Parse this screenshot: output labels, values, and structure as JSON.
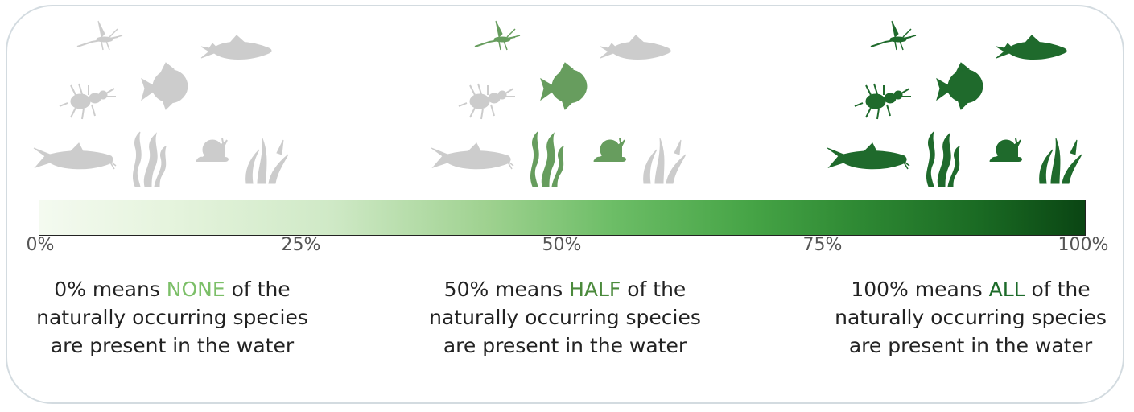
{
  "colors": {
    "none_accent": "#7cbf68",
    "half_accent": "#4b8a3c",
    "all_accent": "#1d6b2a",
    "inactive_icon": "#cccccc",
    "half_icon": "#679d5e",
    "all_icon": "#1f6a2c",
    "frame_border": "#d3dbe0"
  },
  "scale": {
    "ticks": [
      "0%",
      "25%",
      "50%",
      "75%",
      "100%"
    ],
    "gradient": [
      "#f4faf0",
      "#0a4513"
    ]
  },
  "descriptions": [
    {
      "prefix": "0% means ",
      "keyword": "NONE",
      "suffix": " of the naturally occurring species are present in the water"
    },
    {
      "prefix": "50% means ",
      "keyword": "HALF",
      "suffix": " of the naturally occurring species are present in the water"
    },
    {
      "prefix": "100% means ",
      "keyword": "ALL",
      "suffix": " of the naturally occurring species are present in the water"
    }
  ],
  "groups": [
    {
      "level_percent": 0,
      "species": [
        "mayfly-icon",
        "fish-icon",
        "insect-icon",
        "angelfish-icon",
        "catfish-icon",
        "plant-icon",
        "snail-icon",
        "grass-icon"
      ],
      "present": []
    },
    {
      "level_percent": 50,
      "species": [
        "mayfly-icon",
        "fish-icon",
        "insect-icon",
        "angelfish-icon",
        "catfish-icon",
        "plant-icon",
        "snail-icon",
        "grass-icon"
      ],
      "present": [
        "mayfly-icon",
        "angelfish-icon",
        "plant-icon",
        "snail-icon"
      ]
    },
    {
      "level_percent": 100,
      "species": [
        "mayfly-icon",
        "fish-icon",
        "insect-icon",
        "angelfish-icon",
        "catfish-icon",
        "plant-icon",
        "snail-icon",
        "grass-icon"
      ],
      "present": [
        "mayfly-icon",
        "fish-icon",
        "insect-icon",
        "angelfish-icon",
        "catfish-icon",
        "plant-icon",
        "snail-icon",
        "grass-icon"
      ]
    }
  ]
}
